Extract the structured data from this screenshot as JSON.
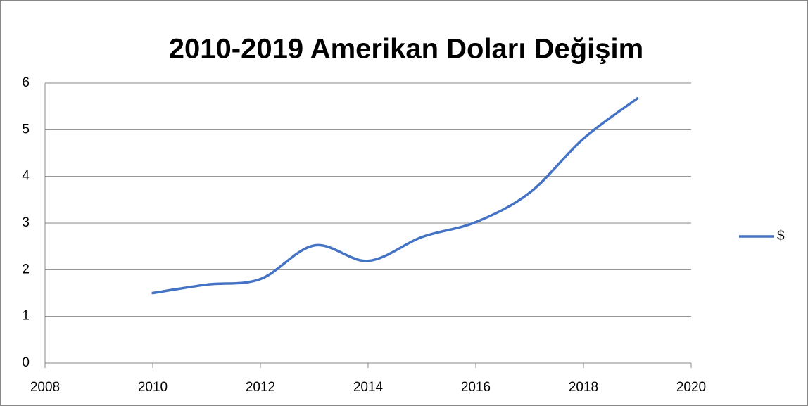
{
  "chart_data": {
    "type": "line",
    "title": "2010-2019 Amerikan Doları Değişim",
    "x": [
      2010,
      2011,
      2012,
      2013,
      2014,
      2015,
      2016,
      2017,
      2018,
      2019
    ],
    "series": [
      {
        "name": "$",
        "color": "#4472c4",
        "values": [
          1.5,
          1.68,
          1.8,
          2.52,
          2.19,
          2.7,
          3.02,
          3.65,
          4.81,
          5.67
        ]
      }
    ],
    "xlim": [
      2008,
      2020
    ],
    "xticks": [
      2008,
      2010,
      2012,
      2014,
      2016,
      2018,
      2020
    ],
    "ylim": [
      0,
      6
    ],
    "yticks": [
      0,
      1,
      2,
      3,
      4,
      5,
      6
    ],
    "grid": true,
    "smooth": true,
    "legend": "right"
  }
}
